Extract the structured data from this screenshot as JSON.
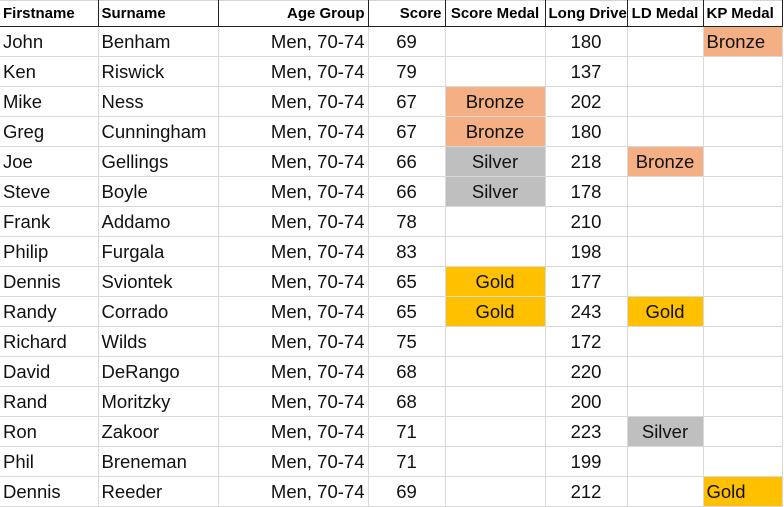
{
  "headers": [
    "Firstname",
    "Surname",
    "Age Group",
    "Score",
    "Score Medal",
    "Long Drive",
    "LD Medal",
    "KP Medal"
  ],
  "medal_colors": {
    "Bronze": "#F4B084",
    "Silver": "#BFBFBF",
    "Gold": "#FFC000"
  },
  "rows": [
    [
      "John",
      "Benham",
      "Men, 70-74",
      "69",
      "",
      "180",
      "",
      "Bronze"
    ],
    [
      "Ken",
      "Riswick",
      "Men, 70-74",
      "79",
      "",
      "137",
      "",
      ""
    ],
    [
      "Mike",
      "Ness",
      "Men, 70-74",
      "67",
      "Bronze",
      "202",
      "",
      ""
    ],
    [
      "Greg",
      "Cunningham",
      "Men, 70-74",
      "67",
      "Bronze",
      "180",
      "",
      ""
    ],
    [
      "Joe",
      "Gellings",
      "Men, 70-74",
      "66",
      "Silver",
      "218",
      "Bronze",
      ""
    ],
    [
      "Steve",
      "Boyle",
      "Men, 70-74",
      "66",
      "Silver",
      "178",
      "",
      ""
    ],
    [
      "Frank",
      "Addamo",
      "Men, 70-74",
      "78",
      "",
      "210",
      "",
      ""
    ],
    [
      "Philip",
      "Furgala",
      "Men, 70-74",
      "83",
      "",
      "198",
      "",
      ""
    ],
    [
      "Dennis",
      "Sviontek",
      "Men, 70-74",
      "65",
      "Gold",
      "177",
      "",
      ""
    ],
    [
      "Randy",
      "Corrado",
      "Men, 70-74",
      "65",
      "Gold",
      "243",
      "Gold",
      ""
    ],
    [
      "Richard",
      "Wilds",
      "Men, 70-74",
      "75",
      "",
      "172",
      "",
      ""
    ],
    [
      "David",
      "DeRango",
      "Men, 70-74",
      "68",
      "",
      "220",
      "",
      ""
    ],
    [
      "Rand",
      "Moritzky",
      "Men, 70-74",
      "68",
      "",
      "200",
      "",
      ""
    ],
    [
      "Ron",
      "Zakoor",
      "Men, 70-74",
      "71",
      "",
      "223",
      "Silver",
      ""
    ],
    [
      "Phil",
      "Breneman",
      "Men, 70-74",
      "71",
      "",
      "199",
      "",
      ""
    ],
    [
      "Dennis",
      "Reeder",
      "Men, 70-74",
      "69",
      "",
      "212",
      "",
      "Gold"
    ]
  ]
}
